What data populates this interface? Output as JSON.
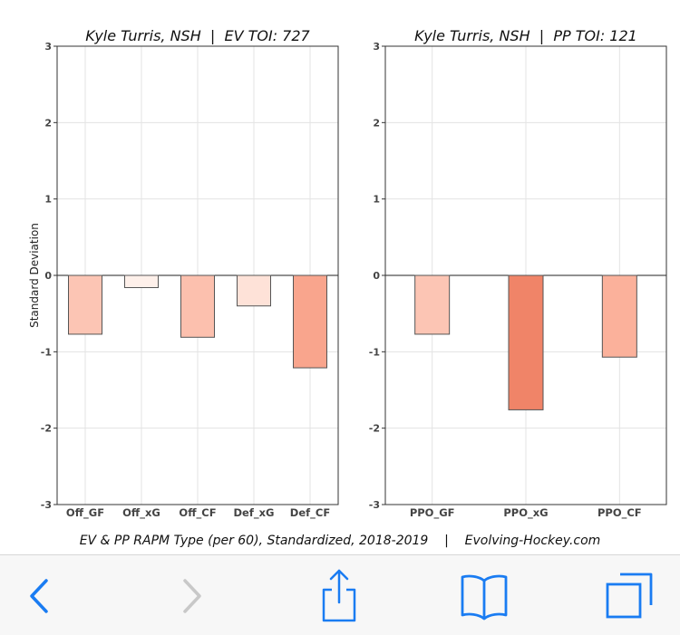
{
  "chart_data": [
    {
      "type": "bar",
      "title": "Kyle Turris, NSH  |  EV TOI: 727",
      "ylabel": "Standard Deviation",
      "categories": [
        "Off_GF",
        "Off_xG",
        "Off_CF",
        "Def_xG",
        "Def_CF"
      ],
      "values": [
        -0.77,
        -0.16,
        -0.81,
        -0.4,
        -1.21
      ],
      "colors": [
        "#fcc5b4",
        "#fef0ea",
        "#fcc0ae",
        "#fee2d8",
        "#f9a58d"
      ],
      "ylim": [
        -3,
        3
      ],
      "yticks": [
        "-3",
        "-2",
        "-1",
        "0",
        "1",
        "2",
        "3"
      ],
      "grid": true
    },
    {
      "type": "bar",
      "title": "Kyle Turris, NSH  |  PP TOI: 121",
      "ylabel": "",
      "categories": [
        "PPO_GF",
        "PPO_xG",
        "PPO_CF"
      ],
      "values": [
        -0.77,
        -1.76,
        -1.07
      ],
      "colors": [
        "#fcc5b4",
        "#f08468",
        "#fbb19b"
      ],
      "ylim": [
        -3,
        3
      ],
      "yticks": [
        "-3",
        "-2",
        "-1",
        "0",
        "1",
        "2",
        "3"
      ],
      "grid": true
    }
  ],
  "caption": "EV & PP RAPM Type (per 60), Standardized, 2018-2019    |    Evolving-Hockey.com",
  "toolbar": {
    "icons": [
      "back-icon",
      "forward-icon",
      "share-icon",
      "bookmarks-icon",
      "tabs-icon"
    ],
    "accent": "#1a7cf2",
    "disabled": "#c8c8c8"
  }
}
